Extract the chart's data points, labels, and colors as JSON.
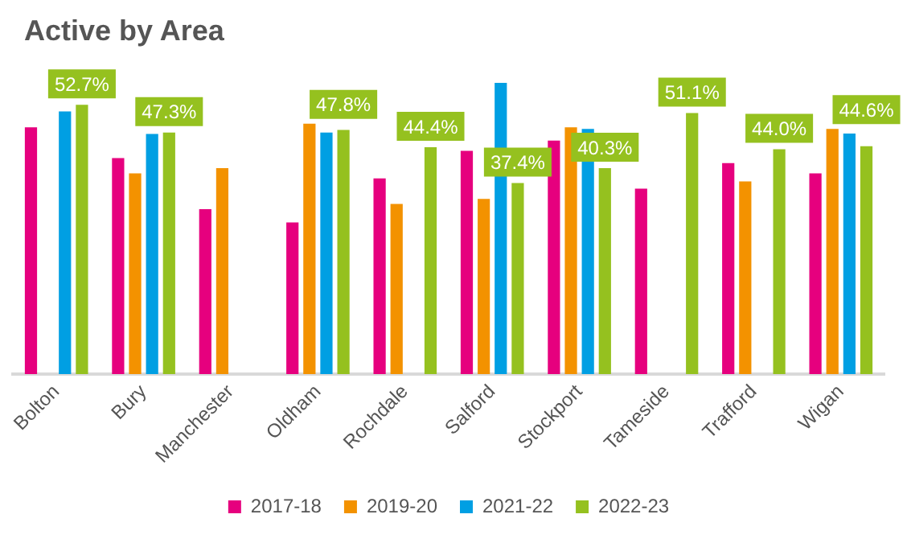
{
  "chart_data": {
    "type": "bar",
    "title": "Active by Area",
    "categories": [
      "Bolton",
      "Bury",
      "Manchester",
      "Oldham",
      "Rochdale",
      "Salford",
      "Stockport",
      "Tameside",
      "Trafford",
      "Wigan"
    ],
    "series": [
      {
        "name": "2017-18",
        "color": "#e6007e",
        "values": [
          48.3,
          42.3,
          32.3,
          29.7,
          38.3,
          43.7,
          45.7,
          36.3,
          41.3,
          39.3
        ]
      },
      {
        "name": "2019-20",
        "color": "#f39200",
        "values": [
          null,
          39.3,
          40.3,
          49.0,
          33.3,
          34.3,
          48.3,
          null,
          37.7,
          48.0
        ]
      },
      {
        "name": "2021-22",
        "color": "#009fe3",
        "values": [
          51.4,
          47.0,
          null,
          47.3,
          null,
          57.0,
          48.0,
          null,
          null,
          47.1
        ]
      },
      {
        "name": "2022-23",
        "color": "#95c11f",
        "values": [
          52.7,
          47.3,
          null,
          47.8,
          44.4,
          37.4,
          40.3,
          51.1,
          44.0,
          44.6
        ],
        "value_labels": [
          "52.7%",
          "47.3%",
          null,
          "47.8%",
          "44.4%",
          "37.4%",
          "40.3%",
          "51.1%",
          "44.0%",
          "44.6%"
        ]
      }
    ],
    "ylim": [
      0,
      60
    ],
    "tick_labels": "x",
    "grid": false,
    "legend": "bottom"
  }
}
